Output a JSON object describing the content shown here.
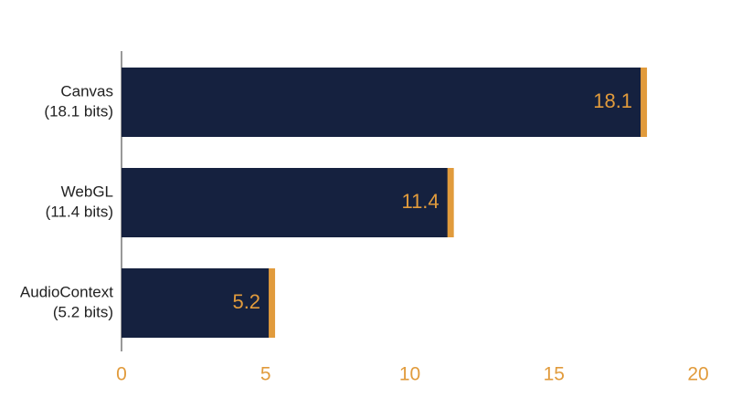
{
  "chart_data": {
    "type": "bar",
    "orientation": "horizontal",
    "categories": [
      "Canvas",
      "WebGL",
      "AudioContext"
    ],
    "category_sublabels": [
      "(18.1 bits)",
      "(11.4 bits)",
      "(5.2 bits)"
    ],
    "values": [
      18.1,
      11.4,
      5.2
    ],
    "color": "#15213f",
    "accent_color": "#e19b3c",
    "tick_color": "#e19b3c",
    "xlim": [
      0,
      20
    ],
    "xticks": [
      0,
      5,
      10,
      15,
      20
    ],
    "grid": false
  }
}
